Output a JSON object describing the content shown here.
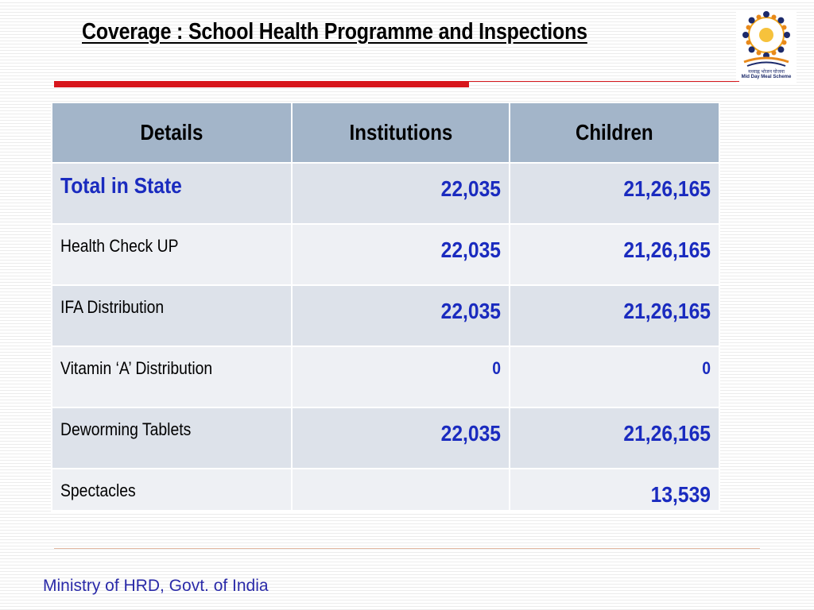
{
  "title": "Coverage : School Health Programme and Inspections",
  "logo": {
    "icon": "mid-day-meal-logo",
    "hindi_text": "मध्याह्न भोजन योजना",
    "english_text": "Mid Day Meal Scheme"
  },
  "table": {
    "headers": [
      "Details",
      "Institutions",
      "Children"
    ],
    "rows": [
      {
        "details": "Total in State",
        "institutions": "22,035",
        "children": "21,26,165"
      },
      {
        "details": "Health Check UP",
        "institutions": "22,035",
        "children": "21,26,165"
      },
      {
        "details": "IFA Distribution",
        "institutions": "22,035",
        "children": "21,26,165"
      },
      {
        "details": "Vitamin ‘A’ Distribution",
        "institutions": "0",
        "children": "0"
      },
      {
        "details": "Deworming Tablets",
        "institutions": "22,035",
        "children": "21,26,165"
      },
      {
        "details": "Spectacles",
        "institutions": "",
        "children": "13,539"
      }
    ]
  },
  "footer": "Ministry of HRD, Govt. of India",
  "colors": {
    "accent_red": "#d7161c",
    "value_blue": "#1a2bbf",
    "header_bg": "#a3b5c9",
    "footer_blue": "#2a2aa8"
  }
}
